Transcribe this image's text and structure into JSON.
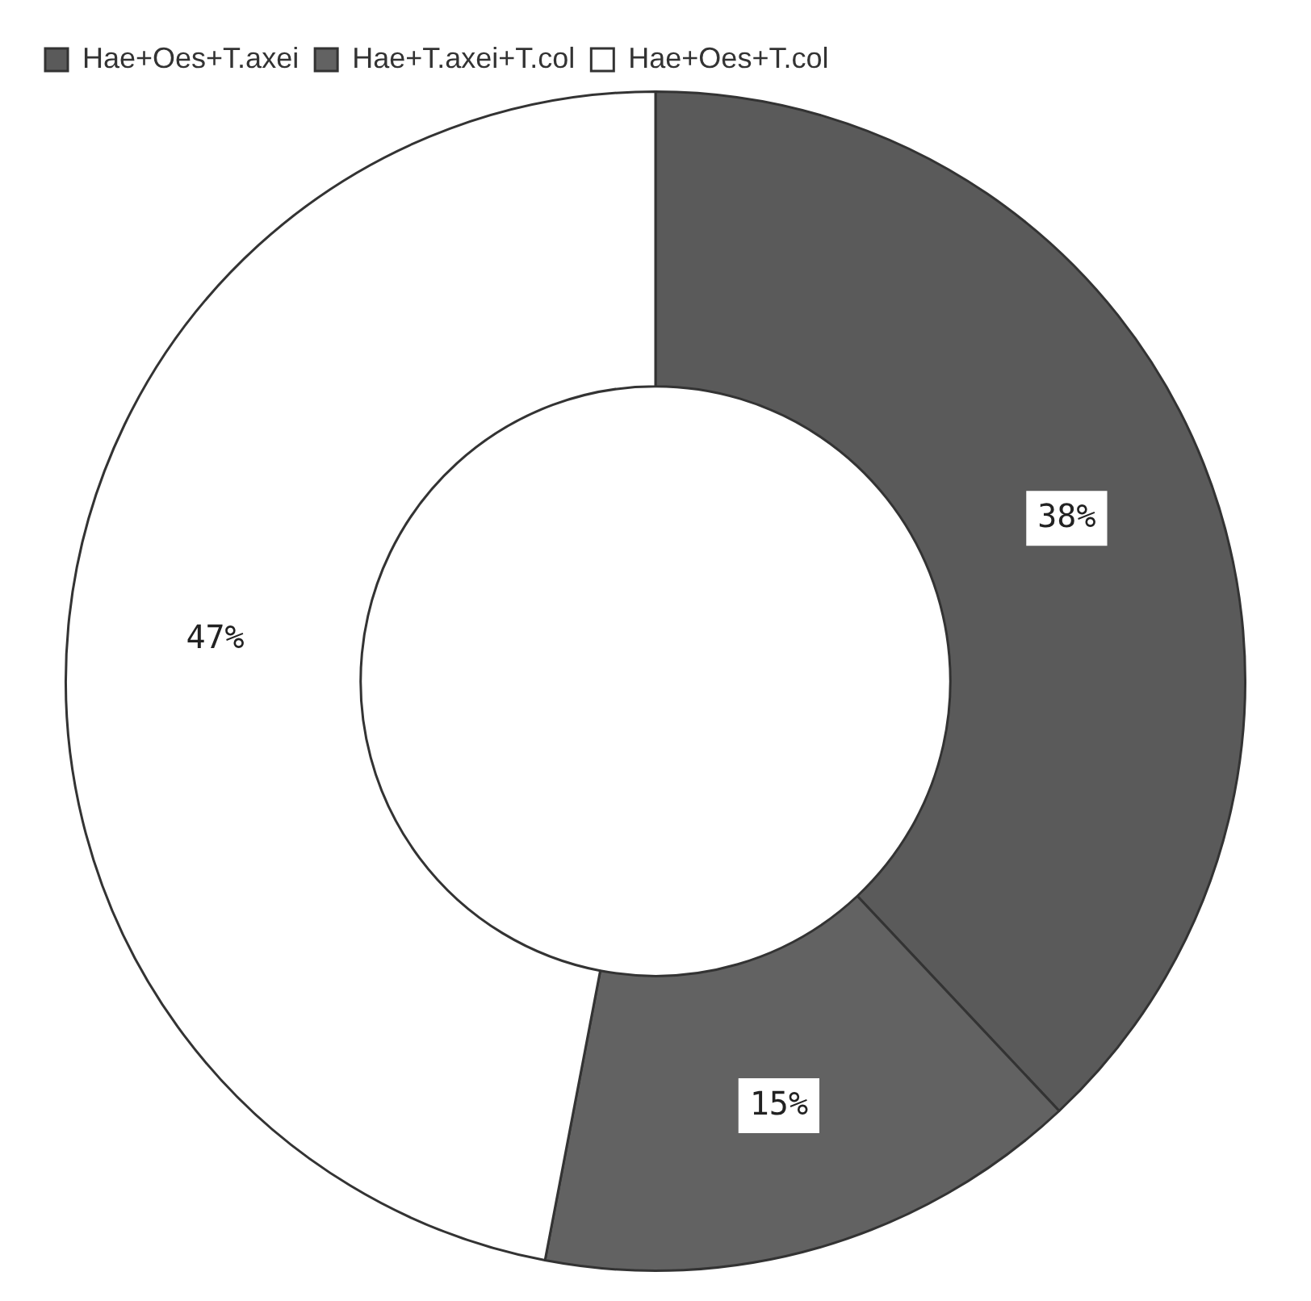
{
  "chart_data": {
    "type": "donut",
    "categories": [
      "Hae+Oes+T.axei",
      "Hae+T.axei+T.col",
      "Hae+Oes+T.col"
    ],
    "values": [
      38,
      15,
      47
    ],
    "colors": [
      "#5a5a5a",
      "#626262",
      "#ffffff"
    ],
    "value_labels": [
      "38%",
      "15%",
      "47%"
    ],
    "legend": "top left"
  }
}
